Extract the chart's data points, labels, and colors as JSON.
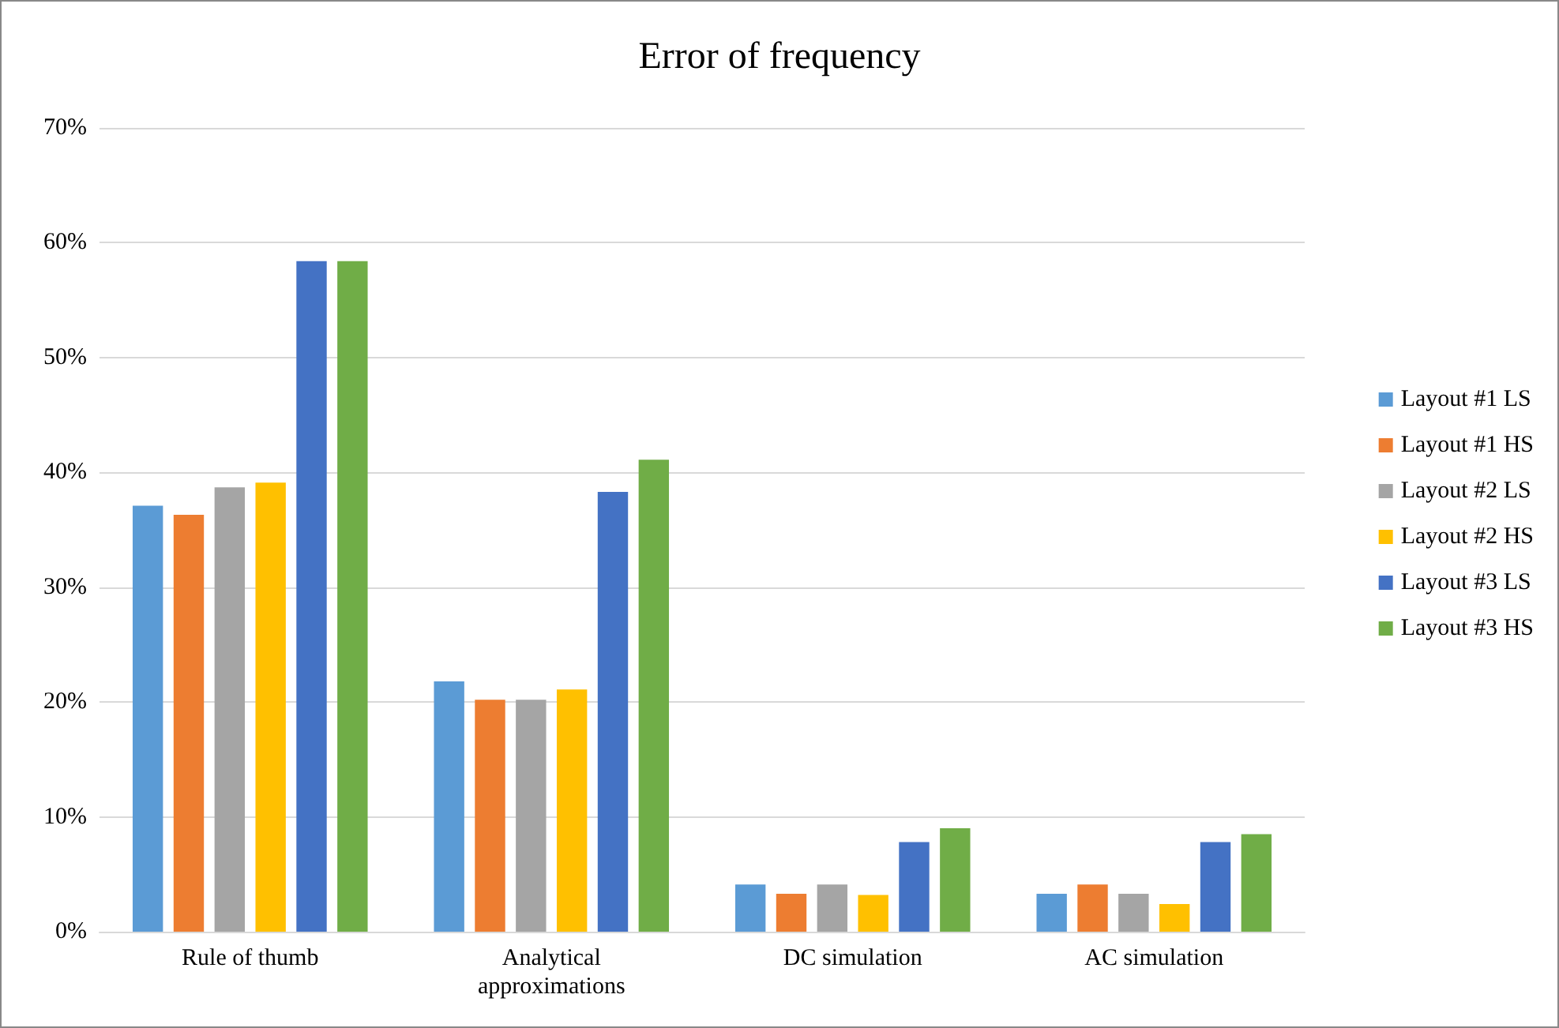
{
  "chart_data": {
    "type": "bar",
    "title": "Error of frequency",
    "categories": [
      "Rule of thumb",
      "Analytical\napproximations",
      "DC simulation",
      "AC simulation"
    ],
    "series": [
      {
        "name": "Layout #1 LS",
        "color": "#5b9bd5",
        "values": [
          37.1,
          21.8,
          4.1,
          3.3
        ]
      },
      {
        "name": "Layout #1 HS",
        "color": "#ed7d31",
        "values": [
          36.3,
          20.2,
          3.3,
          4.1
        ]
      },
      {
        "name": "Layout #2 LS",
        "color": "#a5a5a5",
        "values": [
          38.7,
          20.2,
          4.1,
          3.3
        ]
      },
      {
        "name": "Layout #2 HS",
        "color": "#ffc000",
        "values": [
          39.1,
          21.1,
          3.2,
          2.4
        ]
      },
      {
        "name": "Layout #3 LS",
        "color": "#4472c4",
        "values": [
          58.4,
          38.3,
          7.8,
          7.8
        ]
      },
      {
        "name": "Layout #3 HS",
        "color": "#70ad47",
        "values": [
          58.4,
          41.1,
          9.0,
          8.5
        ]
      }
    ],
    "ylim": [
      0,
      70
    ],
    "yticks": [
      {
        "value": 0,
        "label": "0%"
      },
      {
        "value": 10,
        "label": "10%"
      },
      {
        "value": 20,
        "label": "20%"
      },
      {
        "value": 30,
        "label": "30%"
      },
      {
        "value": 40,
        "label": "40%"
      },
      {
        "value": 50,
        "label": "50%"
      },
      {
        "value": 60,
        "label": "60%"
      },
      {
        "value": 70,
        "label": "70%"
      }
    ],
    "grid": "y",
    "legend": "right"
  }
}
